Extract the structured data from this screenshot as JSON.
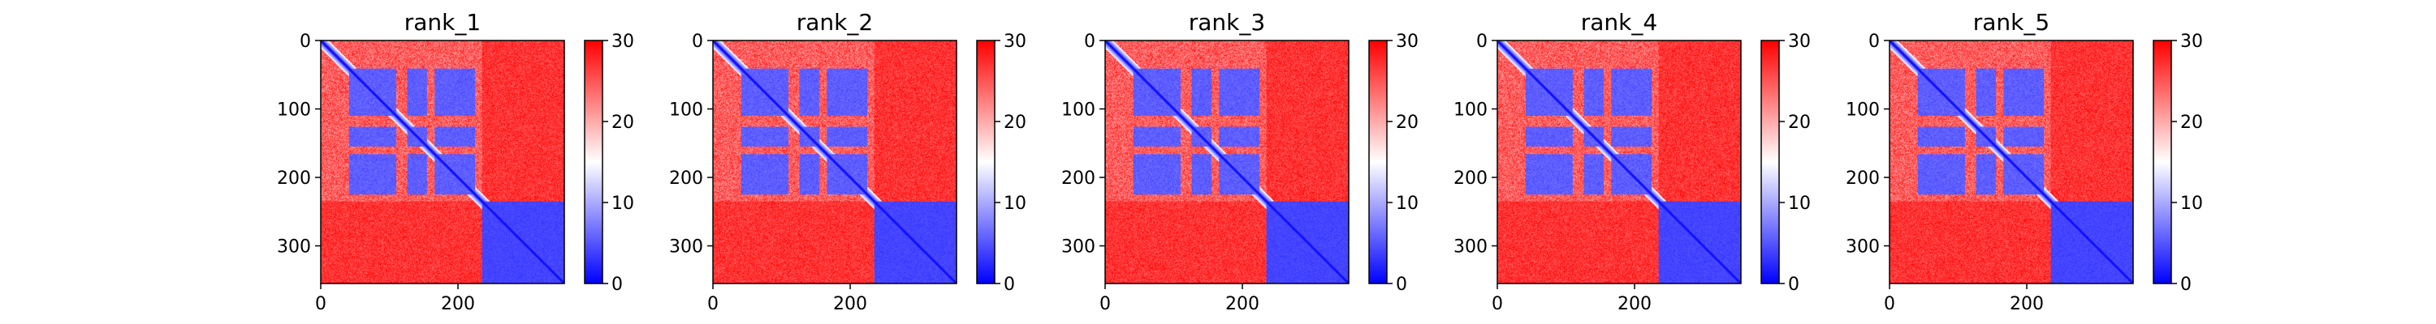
{
  "chart_data": {
    "type": "heatmap",
    "colormap": {
      "name": "bwr",
      "low": "#0000ff",
      "mid": "#ffffff",
      "high": "#ff0000"
    },
    "value_range": [
      0,
      30
    ],
    "colorbar_ticks": [
      0,
      10,
      20,
      30
    ],
    "matrix_size": 355,
    "x_ticks": [
      0,
      200
    ],
    "y_ticks": [
      0,
      100,
      200,
      300
    ],
    "blocks": [
      {
        "start": 0,
        "end": 160
      },
      {
        "start": 160,
        "end": 235
      },
      {
        "start": 235,
        "end": 355
      }
    ],
    "panels": [
      {
        "title": "rank_1"
      },
      {
        "title": "rank_2"
      },
      {
        "title": "rank_3"
      },
      {
        "title": "rank_4"
      },
      {
        "title": "rank_5"
      }
    ]
  }
}
